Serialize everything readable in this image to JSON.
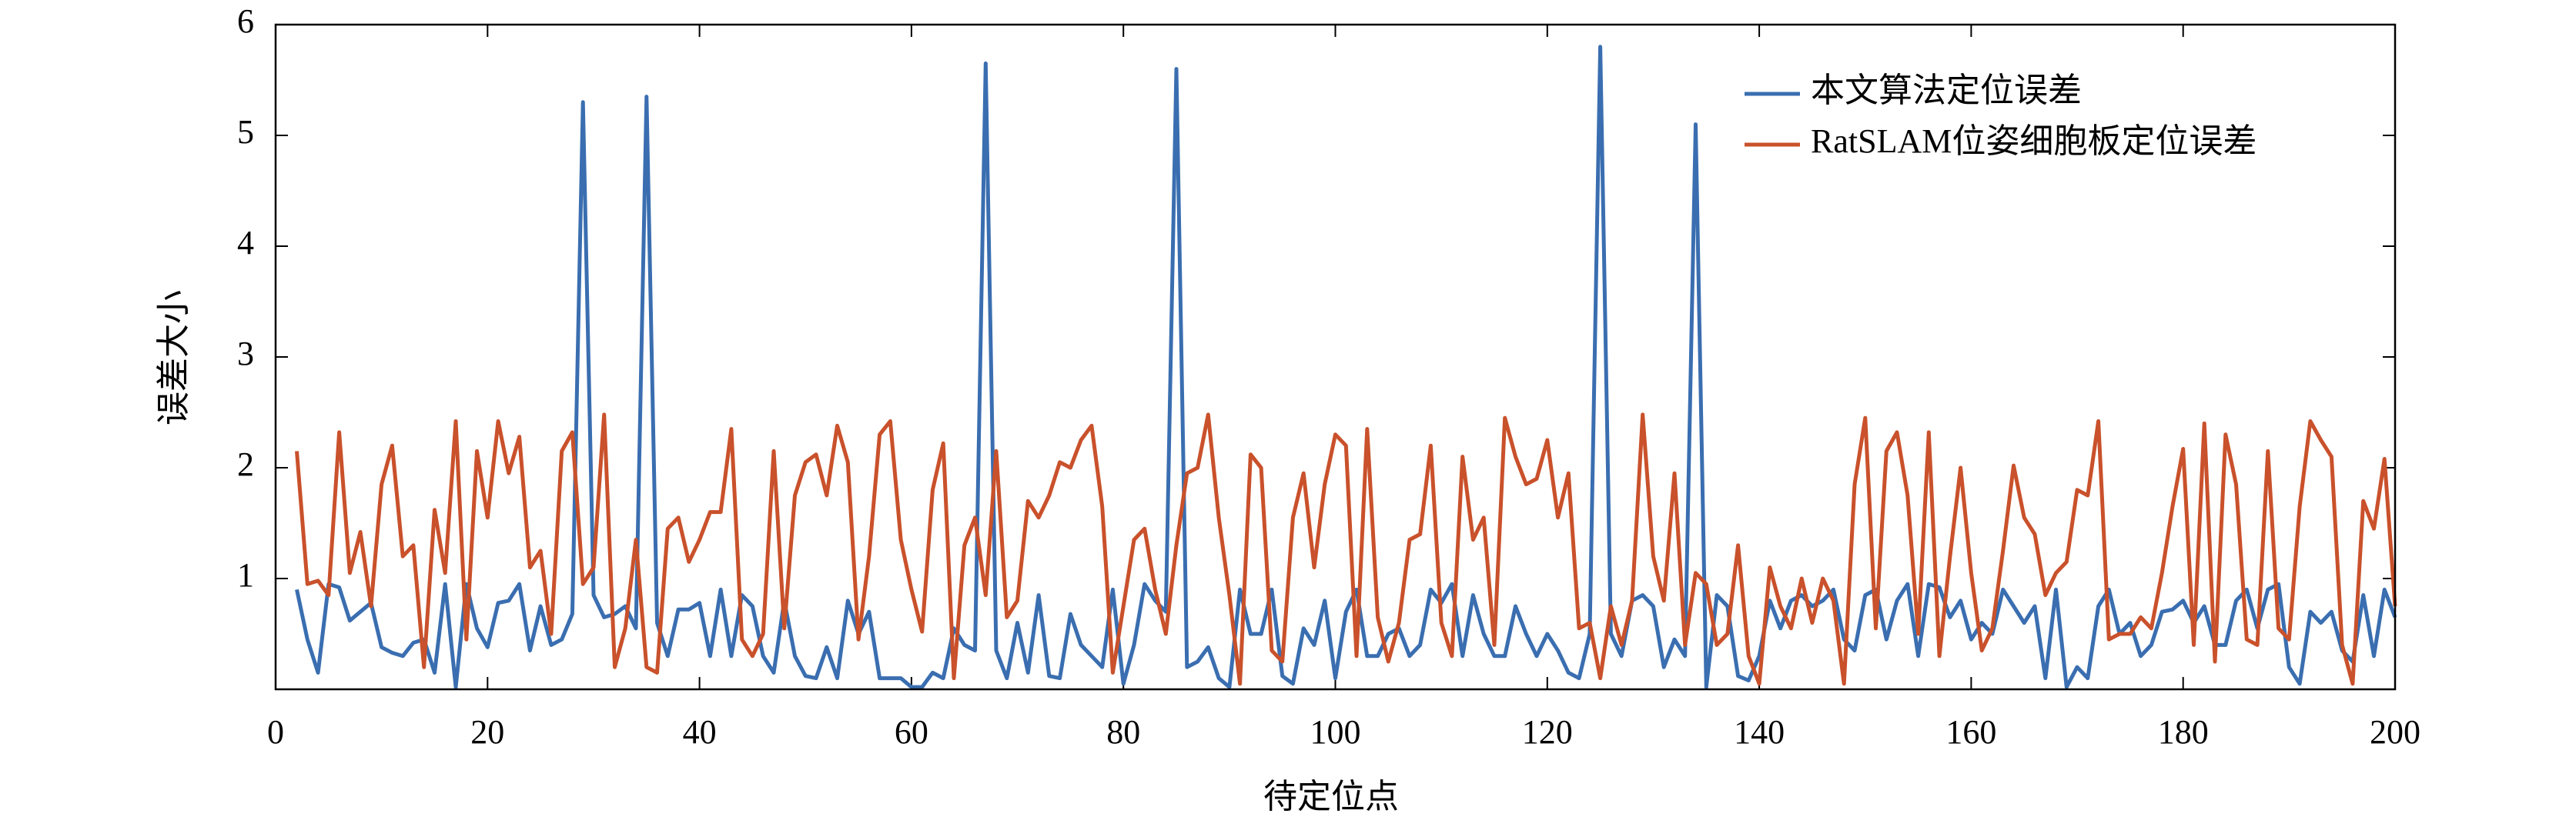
{
  "chart_data": {
    "type": "line",
    "xlabel": "待定位点",
    "ylabel": "误差大小",
    "x": [
      2,
      3,
      4,
      5,
      6,
      7,
      8,
      9,
      10,
      11,
      12,
      13,
      14,
      15,
      16,
      17,
      18,
      19,
      20,
      21,
      22,
      23,
      24,
      25,
      26,
      27,
      28,
      29,
      30,
      31,
      32,
      33,
      34,
      35,
      36,
      37,
      38,
      39,
      40,
      41,
      42,
      43,
      44,
      45,
      46,
      47,
      48,
      49,
      50,
      51,
      52,
      53,
      54,
      55,
      56,
      57,
      58,
      59,
      60,
      61,
      62,
      63,
      64,
      65,
      66,
      67,
      68,
      69,
      70,
      71,
      72,
      73,
      74,
      75,
      76,
      77,
      78,
      79,
      80,
      81,
      82,
      83,
      84,
      85,
      86,
      87,
      88,
      89,
      90,
      91,
      92,
      93,
      94,
      95,
      96,
      97,
      98,
      99,
      100,
      101,
      102,
      103,
      104,
      105,
      106,
      107,
      108,
      109,
      110,
      111,
      112,
      113,
      114,
      115,
      116,
      117,
      118,
      119,
      120,
      121,
      122,
      123,
      124,
      125,
      126,
      127,
      128,
      129,
      130,
      131,
      132,
      133,
      134,
      135,
      136,
      137,
      138,
      139,
      140,
      141,
      142,
      143,
      144,
      145,
      146,
      147,
      148,
      149,
      150,
      151,
      152,
      153,
      154,
      155,
      156,
      157,
      158,
      159,
      160,
      161,
      162,
      163,
      164,
      165,
      166,
      167,
      168,
      169,
      170,
      171,
      172,
      173,
      174,
      175,
      176,
      177,
      178,
      179,
      180,
      181,
      182,
      183,
      184,
      185,
      186,
      187,
      188,
      189,
      190,
      191,
      192,
      193,
      194,
      195,
      196,
      197,
      198,
      199,
      200
    ],
    "series": [
      {
        "name": "本文算法定位误差",
        "color": "#3a6eb0",
        "values": [
          0.9,
          0.45,
          0.15,
          0.95,
          0.92,
          0.62,
          0.7,
          0.78,
          0.38,
          0.33,
          0.3,
          0.42,
          0.45,
          0.15,
          0.95,
          0.02,
          0.95,
          0.55,
          0.38,
          0.78,
          0.8,
          0.95,
          0.35,
          0.75,
          0.4,
          0.45,
          0.68,
          5.3,
          0.85,
          0.65,
          0.68,
          0.75,
          0.55,
          5.35,
          0.6,
          0.3,
          0.72,
          0.72,
          0.78,
          0.3,
          0.9,
          0.3,
          0.85,
          0.75,
          0.3,
          0.15,
          0.8,
          0.3,
          0.12,
          0.1,
          0.38,
          0.1,
          0.8,
          0.5,
          0.7,
          0.1,
          0.1,
          0.1,
          0.02,
          0.02,
          0.15,
          0.1,
          0.55,
          0.4,
          0.35,
          5.65,
          0.35,
          0.1,
          0.6,
          0.15,
          0.85,
          0.12,
          0.1,
          0.68,
          0.4,
          0.3,
          0.2,
          0.9,
          0.05,
          0.4,
          0.95,
          0.8,
          0.7,
          5.6,
          0.2,
          0.25,
          0.38,
          0.1,
          0.02,
          0.9,
          0.5,
          0.5,
          0.9,
          0.12,
          0.05,
          0.55,
          0.4,
          0.8,
          0.1,
          0.7,
          0.9,
          0.3,
          0.3,
          0.5,
          0.55,
          0.3,
          0.4,
          0.9,
          0.78,
          0.95,
          0.3,
          0.85,
          0.5,
          0.3,
          0.3,
          0.75,
          0.5,
          0.3,
          0.5,
          0.35,
          0.15,
          0.1,
          0.5,
          5.8,
          0.5,
          0.3,
          0.8,
          0.85,
          0.75,
          0.2,
          0.45,
          0.3,
          5.1,
          0.02,
          0.85,
          0.75,
          0.12,
          0.08,
          0.3,
          0.8,
          0.55,
          0.8,
          0.85,
          0.75,
          0.8,
          0.9,
          0.45,
          0.35,
          0.85,
          0.9,
          0.45,
          0.8,
          0.95,
          0.3,
          0.95,
          0.92,
          0.65,
          0.8,
          0.45,
          0.6,
          0.5,
          0.9,
          0.75,
          0.6,
          0.75,
          0.1,
          0.9,
          0.02,
          0.2,
          0.1,
          0.75,
          0.9,
          0.5,
          0.6,
          0.3,
          0.4,
          0.7,
          0.72,
          0.8,
          0.6,
          0.75,
          0.4,
          0.4,
          0.8,
          0.9,
          0.55,
          0.9,
          0.95,
          0.2,
          0.05,
          0.7,
          0.6,
          0.7,
          0.35,
          0.25,
          0.85,
          0.3,
          0.9,
          0.65
        ]
      },
      {
        "name": "RatSLAM位姿细胞板定位误差",
        "color": "#c9512b",
        "values": [
          2.15,
          0.95,
          0.98,
          0.85,
          2.32,
          1.05,
          1.42,
          0.75,
          1.85,
          2.2,
          1.2,
          1.3,
          0.2,
          1.62,
          1.05,
          2.42,
          0.45,
          2.15,
          1.55,
          2.42,
          1.95,
          2.28,
          1.1,
          1.25,
          0.5,
          2.15,
          2.32,
          0.95,
          1.1,
          2.48,
          0.2,
          0.55,
          1.35,
          0.2,
          0.15,
          1.45,
          1.55,
          1.15,
          1.35,
          1.6,
          1.6,
          2.35,
          0.45,
          0.3,
          0.5,
          2.15,
          0.55,
          1.75,
          2.05,
          2.12,
          1.75,
          2.38,
          2.05,
          0.45,
          1.2,
          2.3,
          2.42,
          1.35,
          0.9,
          0.52,
          1.8,
          2.22,
          0.1,
          1.3,
          1.55,
          0.85,
          2.15,
          0.65,
          0.8,
          1.7,
          1.55,
          1.75,
          2.05,
          2.0,
          2.25,
          2.38,
          1.65,
          0.15,
          0.75,
          1.35,
          1.45,
          0.9,
          0.5,
          1.3,
          1.95,
          2.0,
          2.48,
          1.55,
          0.85,
          0.05,
          2.12,
          2.0,
          0.35,
          0.25,
          1.55,
          1.95,
          1.1,
          1.85,
          2.3,
          2.2,
          0.3,
          2.35,
          0.65,
          0.25,
          0.6,
          1.35,
          1.4,
          2.2,
          0.6,
          0.3,
          2.1,
          1.35,
          1.55,
          0.4,
          2.45,
          2.1,
          1.85,
          1.9,
          2.25,
          1.55,
          1.95,
          0.55,
          0.6,
          0.1,
          0.75,
          0.4,
          0.8,
          2.48,
          1.2,
          0.8,
          1.95,
          0.4,
          1.05,
          0.95,
          0.4,
          0.5,
          1.3,
          0.3,
          0.05,
          1.1,
          0.75,
          0.55,
          1.0,
          0.6,
          1.0,
          0.8,
          0.05,
          1.85,
          2.45,
          0.55,
          2.15,
          2.32,
          1.75,
          0.5,
          2.32,
          0.3,
          1.2,
          2.0,
          1.05,
          0.35,
          0.55,
          1.25,
          2.02,
          1.55,
          1.4,
          0.85,
          1.05,
          1.15,
          1.8,
          1.75,
          2.42,
          0.45,
          0.5,
          0.5,
          0.65,
          0.55,
          1.05,
          1.65,
          2.17,
          0.4,
          2.4,
          0.25,
          2.3,
          1.85,
          0.45,
          0.4,
          2.15,
          0.55,
          0.45,
          1.65,
          2.42,
          2.25,
          2.1,
          0.4,
          0.05,
          1.7,
          1.45,
          2.08,
          0.75
        ]
      }
    ],
    "xlim": [
      0,
      200
    ],
    "xticks": [
      0,
      20,
      40,
      60,
      80,
      100,
      120,
      140,
      160,
      180,
      200
    ],
    "ylim": [
      0,
      6
    ],
    "yticks": [
      1,
      2,
      3,
      4,
      5,
      6
    ],
    "grid": false,
    "legend": "upper right"
  }
}
